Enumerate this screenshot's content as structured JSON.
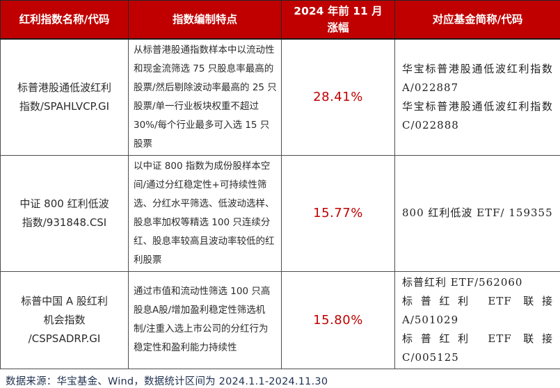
{
  "colors": {
    "header_bg": "#C00000",
    "header_text": "#FFFFFF",
    "gain_text": "#C00000",
    "body_text": "#2B2B2B",
    "footer_text": "#1F3050",
    "border": "#4D4D4D"
  },
  "table": {
    "header": {
      "index_name": "红利指数名称/代码",
      "features": "指数编制特点",
      "gain_line1": "2024 年前 11 月",
      "gain_line2": "涨幅",
      "funds": "对应基金简称/代码"
    },
    "rows": [
      {
        "name_lines": [
          "标普港股通低波红利",
          "指数/SPAHLVCP.GI"
        ],
        "features": "从标普港股通指数样本中以流动性和现金流筛选 75 只股息率最高的股票/然后剔除波动率最高的 25 只股票/单一行业板块权重不超过 30%/每个行业最多可入选 15 只股票",
        "gain": "28.41%",
        "funds": [
          "华宝标普港股通低波红利指数 A/022887",
          "华宝标普港股通低波红利指数 C/022888"
        ]
      },
      {
        "name_lines": [
          "中证 800 红利低波",
          "指数/931848.CSI"
        ],
        "features": "以中证 800 指数为成份股样本空间/通过分红稳定性+可持续性筛选、分红水平筛选、低波动选样、股息率加权等精选 100 只连续分红、股息率较高且波动率较低的红利股票",
        "gain": "15.77%",
        "funds": [
          "800 红利低波 ETF/ 159355"
        ]
      },
      {
        "name_lines": [
          "标普中国 A 股红利",
          "机会指数",
          "/CSPSADRP.GI"
        ],
        "features": "通过市值和流动性筛选 100 只高股息A股/增加盈利稳定性筛选机制/注重入选上市公司的分红行为稳定性和盈利能力持续性",
        "gain": "15.80%",
        "funds": [
          "标普红利 ETF/562060",
          "标普红利 ETF 联接 A/501029",
          "标普红利 ETF 联接 C/005125"
        ]
      }
    ]
  },
  "footer": {
    "text": "数据来源：华宝基金、Wind，数据统计区间为 2024.1.1-2024.11.30"
  }
}
